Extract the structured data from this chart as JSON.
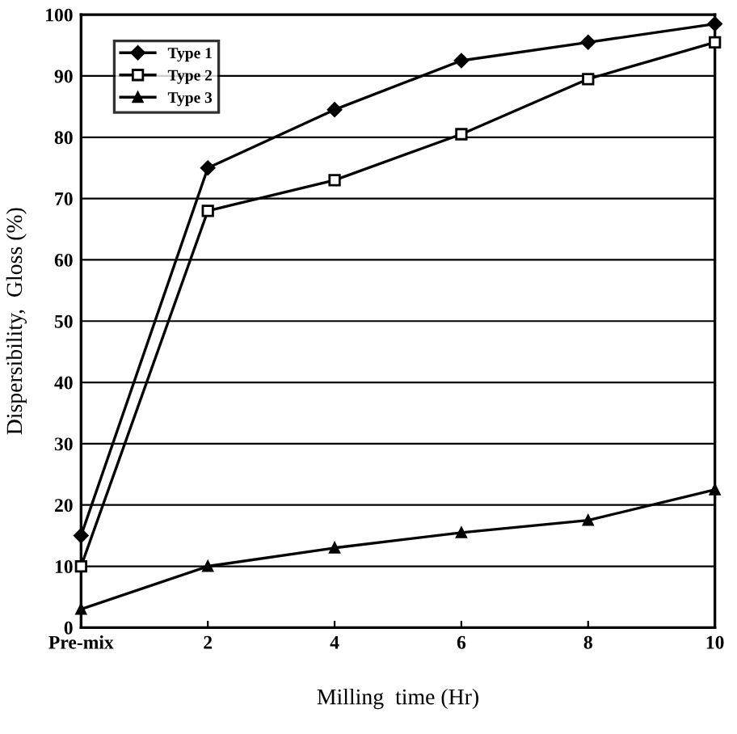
{
  "chart_data": {
    "type": "line",
    "xlabel": "Milling  time (Hr)",
    "ylabel": "Dispersibility,  Gloss (%)",
    "categories": [
      "Pre-mix",
      "2",
      "4",
      "6",
      "8",
      "10"
    ],
    "series": [
      {
        "name": "Type 1",
        "color": "#000000",
        "marker": "diamond",
        "values": [
          15,
          75,
          84.5,
          92.5,
          95.5,
          98.5
        ]
      },
      {
        "name": "Type 2",
        "color": "#000000",
        "marker": "square",
        "values": [
          10,
          68,
          73,
          80.5,
          89.5,
          95.5
        ]
      },
      {
        "name": "Type 3",
        "color": "#000000",
        "marker": "triangle",
        "values": [
          3,
          10,
          13,
          15.5,
          17.5,
          22.5
        ]
      }
    ],
    "ylim": [
      0,
      100
    ],
    "yticks": [
      0,
      10,
      20,
      30,
      40,
      50,
      60,
      70,
      80,
      90,
      100
    ],
    "grid": "y",
    "legend": "top left",
    "line_style": "solid"
  }
}
